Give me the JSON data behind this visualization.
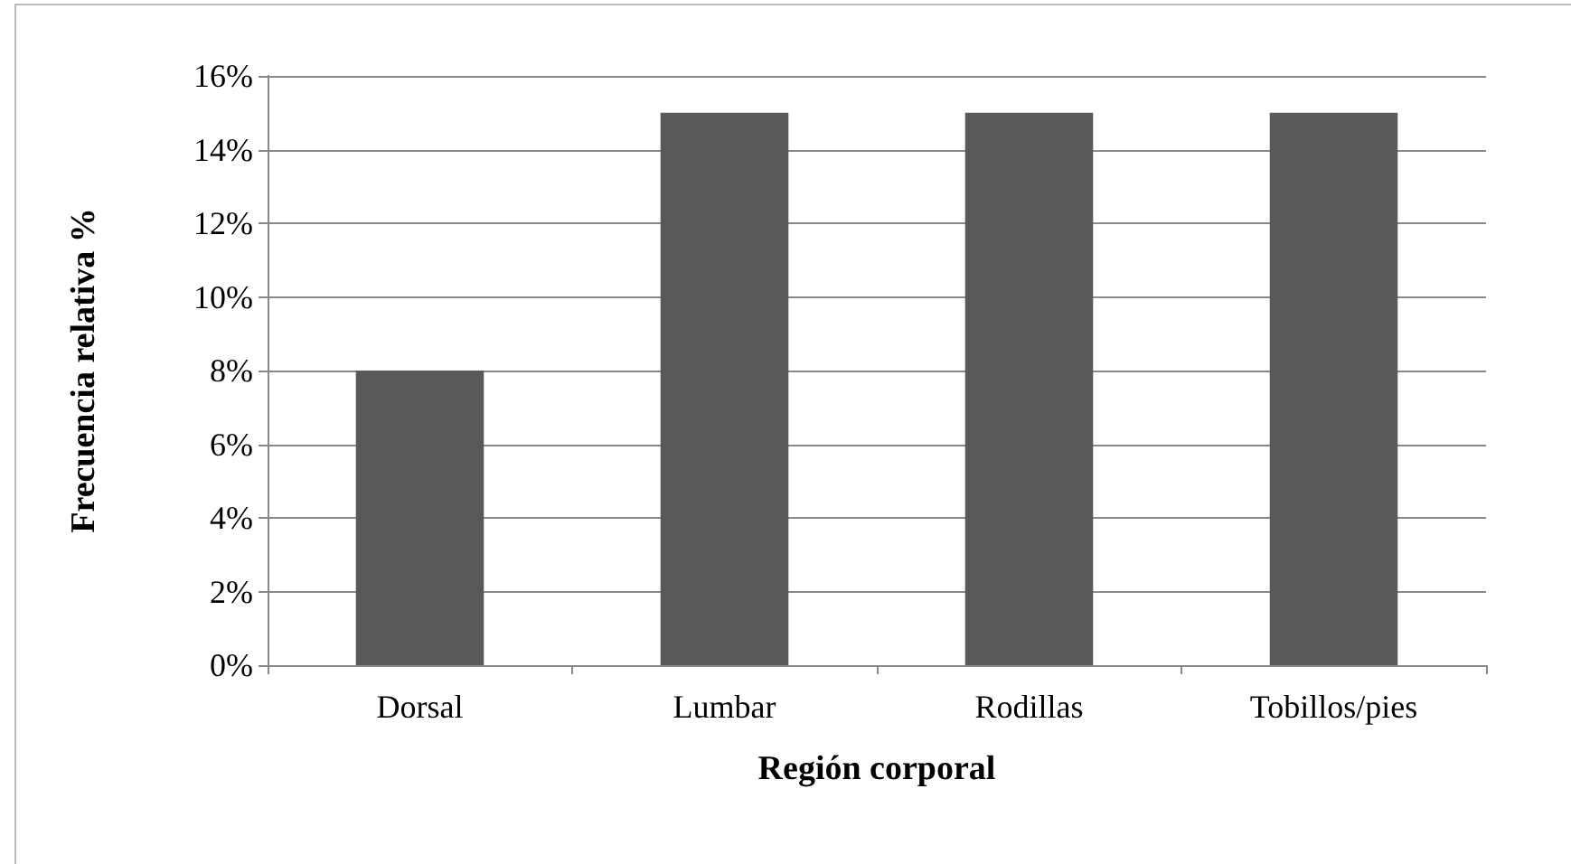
{
  "chart_data": {
    "type": "bar",
    "xlabel": "Región corporal",
    "ylabel": "Frecuencia relativa %",
    "categories": [
      "Dorsal",
      "Lumbar",
      "Rodillas",
      "Tobillos/pies"
    ],
    "values": [
      8,
      15,
      15,
      15
    ],
    "color": "#595959",
    "ylim": [
      0,
      16
    ],
    "yticks": [
      {
        "value": 0,
        "label": "0%"
      },
      {
        "value": 2,
        "label": "2%"
      },
      {
        "value": 4,
        "label": "4%"
      },
      {
        "value": 6,
        "label": "6%"
      },
      {
        "value": 8,
        "label": "8%"
      },
      {
        "value": 10,
        "label": "10%"
      },
      {
        "value": 12,
        "label": "12%"
      },
      {
        "value": 14,
        "label": "14%"
      },
      {
        "value": 16,
        "label": "16%"
      }
    ],
    "grid": "y"
  }
}
